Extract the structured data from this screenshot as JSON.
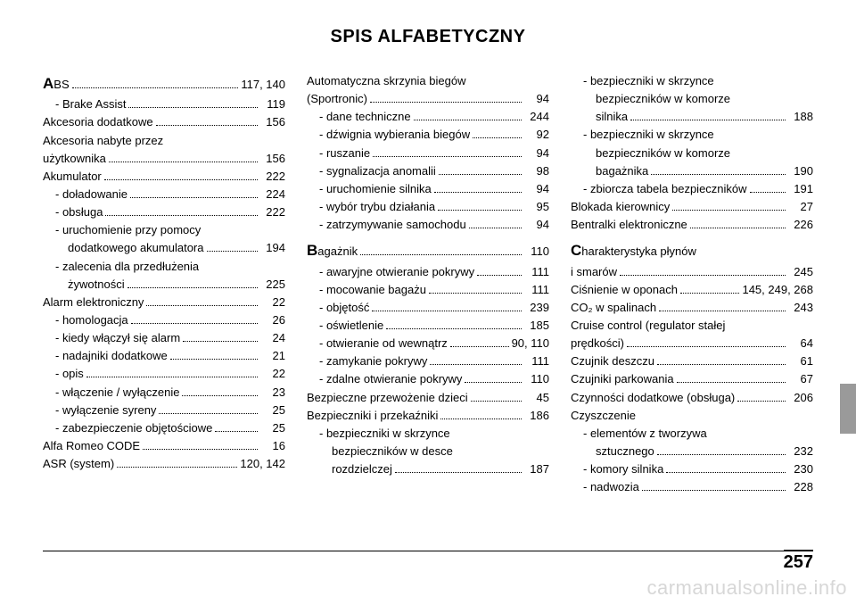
{
  "title": "SPIS ALFABETYCZNY",
  "page_number": "257",
  "watermark": "carmanualsonline.info",
  "columns": [
    [
      {
        "pre": "A",
        "label": "BS",
        "page": "117, 140",
        "big": true
      },
      {
        "label": "- Brake Assist",
        "page": "119",
        "sub": true
      },
      {
        "label": "Akcesoria dodatkowe",
        "page": "156"
      },
      {
        "label": "Akcesoria nabyte przez",
        "noline": true
      },
      {
        "label": "użytkownika",
        "page": "156"
      },
      {
        "label": "Akumulator",
        "page": "222"
      },
      {
        "label": "- doładowanie",
        "page": "224",
        "sub": true
      },
      {
        "label": "- obsługa",
        "page": "222",
        "sub": true
      },
      {
        "label": "- uruchomienie przy pomocy",
        "sub": true,
        "noline": true
      },
      {
        "label": "dodatkowego akumulatora",
        "page": "194",
        "sub2": true
      },
      {
        "label": "- zalecenia dla przedłużenia",
        "sub": true,
        "noline": true
      },
      {
        "label": "żywotności",
        "page": "225",
        "sub2": true
      },
      {
        "label": "Alarm elektroniczny",
        "page": "22"
      },
      {
        "label": "- homologacja",
        "page": "26",
        "sub": true
      },
      {
        "label": "- kiedy włączył się alarm",
        "page": "24",
        "sub": true
      },
      {
        "label": "- nadajniki dodatkowe",
        "page": "21",
        "sub": true
      },
      {
        "label": "- opis",
        "page": "22",
        "sub": true
      },
      {
        "label": "- włączenie / wyłączenie",
        "page": "23",
        "sub": true
      },
      {
        "label": "- wyłączenie syreny",
        "page": "25",
        "sub": true
      },
      {
        "label": "- zabezpieczenie objętościowe",
        "page": "25",
        "sub": true
      },
      {
        "label": "Alfa Romeo CODE",
        "page": "16"
      },
      {
        "label": "ASR (system)",
        "page": "120, 142"
      }
    ],
    [
      {
        "label": "Automatyczna skrzynia biegów",
        "noline": true
      },
      {
        "label": "(Sportronic)",
        "page": "94"
      },
      {
        "label": "- dane techniczne",
        "page": "244",
        "sub": true
      },
      {
        "label": "- dźwignia wybierania biegów",
        "page": "92",
        "sub": true
      },
      {
        "label": "- ruszanie",
        "page": "94",
        "sub": true
      },
      {
        "label": "- sygnalizacja anomalii",
        "page": "98",
        "sub": true
      },
      {
        "label": "- uruchomienie silnika",
        "page": "94",
        "sub": true
      },
      {
        "label": "- wybór trybu działania",
        "page": "95",
        "sub": true
      },
      {
        "label": "- zatrzymywanie samochodu",
        "page": "94",
        "sub": true
      },
      {
        "spacer": true
      },
      {
        "pre": "B",
        "label": "agażnik",
        "page": "110",
        "big": true
      },
      {
        "label": "- awaryjne otwieranie pokrywy",
        "page": "111",
        "sub": true
      },
      {
        "label": "- mocowanie bagażu",
        "page": "111",
        "sub": true
      },
      {
        "label": "- objętość",
        "page": "239",
        "sub": true
      },
      {
        "label": "- oświetlenie",
        "page": "185",
        "sub": true
      },
      {
        "label": "- otwieranie od wewnątrz",
        "page": "90, 110",
        "sub": true
      },
      {
        "label": "- zamykanie pokrywy",
        "page": "111",
        "sub": true
      },
      {
        "label": "- zdalne otwieranie pokrywy",
        "page": "110",
        "sub": true
      },
      {
        "label": "Bezpieczne przewożenie dzieci",
        "page": "45"
      },
      {
        "label": "Bezpieczniki i przekaźniki",
        "page": "186"
      },
      {
        "label": "- bezpieczniki w skrzynce",
        "sub": true,
        "noline": true
      },
      {
        "label": "bezpieczników w desce",
        "sub2": true,
        "noline": true
      },
      {
        "label": "rozdzielczej",
        "page": "187",
        "sub2": true
      }
    ],
    [
      {
        "label": "- bezpieczniki w skrzynce",
        "sub": true,
        "noline": true
      },
      {
        "label": "bezpieczników w komorze",
        "sub2": true,
        "noline": true
      },
      {
        "label": "silnika",
        "page": "188",
        "sub2": true
      },
      {
        "label": "- bezpieczniki w skrzynce",
        "sub": true,
        "noline": true
      },
      {
        "label": "bezpieczników w komorze",
        "sub2": true,
        "noline": true
      },
      {
        "label": "bagażnika",
        "page": "190",
        "sub2": true
      },
      {
        "label": "- zbiorcza tabela bezpieczników",
        "page": "191",
        "sub": true
      },
      {
        "label": "Blokada kierownicy",
        "page": "27"
      },
      {
        "label": "Bentralki elektroniczne",
        "page": "226"
      },
      {
        "spacer": true
      },
      {
        "pre": "C",
        "label": "harakterystyka płynów",
        "big": true,
        "noline": true
      },
      {
        "label": "i smarów",
        "page": "245"
      },
      {
        "label": "Ciśnienie w oponach",
        "page": "145, 249, 268"
      },
      {
        "label": "CO₂ w spalinach",
        "page": "243"
      },
      {
        "label": "Cruise control (regulator stałej",
        "noline": true
      },
      {
        "label": "prędkości)",
        "page": "64"
      },
      {
        "label": "Czujnik deszczu",
        "page": "61"
      },
      {
        "label": "Czujniki parkowania",
        "page": "67"
      },
      {
        "label": "Czynności dodatkowe (obsługa)",
        "page": "206"
      },
      {
        "label": "Czyszczenie",
        "noline": true
      },
      {
        "label": "- elementów z tworzywa",
        "sub": true,
        "noline": true
      },
      {
        "label": "sztucznego",
        "page": "232",
        "sub2": true
      },
      {
        "label": "- komory silnika",
        "page": "230",
        "sub": true
      },
      {
        "label": "- nadwozia",
        "page": "228",
        "sub": true
      }
    ]
  ]
}
